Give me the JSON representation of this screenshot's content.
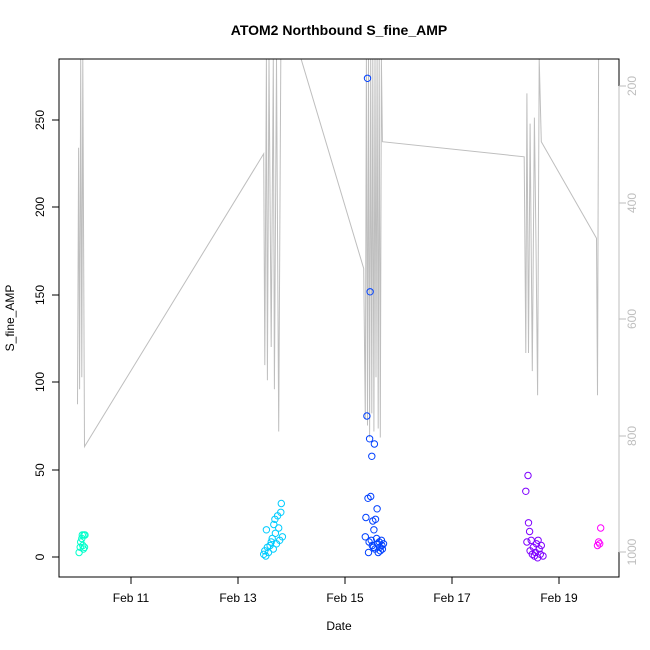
{
  "chart_data": {
    "type": "scatter",
    "title": "ATOM2 Northbound S_fine_AMP",
    "xlabel": "Date",
    "ylabel": "S_fine_AMP",
    "x_ticks": [
      "Feb 11",
      "Feb 13",
      "Feb 15",
      "Feb 17",
      "Feb 19"
    ],
    "y_ticks": [
      "0",
      "50",
      "100",
      "150",
      "200",
      "250"
    ],
    "y_right_ticks": [
      "200",
      "400",
      "600",
      "800",
      "1000"
    ],
    "xlim": [
      "Feb 9 15:30",
      "Feb 20 01:00"
    ],
    "ylim": [
      -11,
      285
    ],
    "y_right_lim": [
      1031,
      173
    ],
    "grid": false,
    "series": [
      {
        "marker": "open-circle",
        "colors": [
          "#00ffcc",
          "#00ccff",
          "#0040ff",
          "#7f00ff",
          "#ff00ff"
        ],
        "points": [
          {
            "x": 10.03,
            "y": 3,
            "c": 0
          },
          {
            "x": 10.05,
            "y": 6,
            "c": 0
          },
          {
            "x": 10.06,
            "y": 9,
            "c": 0
          },
          {
            "x": 10.08,
            "y": 11,
            "c": 0
          },
          {
            "x": 10.09,
            "y": 13,
            "c": 0
          },
          {
            "x": 10.1,
            "y": 7,
            "c": 0
          },
          {
            "x": 10.11,
            "y": 5,
            "c": 0
          },
          {
            "x": 10.12,
            "y": 13,
            "c": 0
          },
          {
            "x": 10.13,
            "y": 6,
            "c": 0
          },
          {
            "x": 10.14,
            "y": 13,
            "c": 0
          },
          {
            "x": 13.48,
            "y": 2,
            "c": 1
          },
          {
            "x": 13.5,
            "y": 4,
            "c": 1
          },
          {
            "x": 13.52,
            "y": 1,
            "c": 1
          },
          {
            "x": 13.53,
            "y": 16,
            "c": 1
          },
          {
            "x": 13.55,
            "y": 6,
            "c": 1
          },
          {
            "x": 13.57,
            "y": 3,
            "c": 1
          },
          {
            "x": 13.6,
            "y": 7,
            "c": 1
          },
          {
            "x": 13.62,
            "y": 9,
            "c": 1
          },
          {
            "x": 13.64,
            "y": 11,
            "c": 1
          },
          {
            "x": 13.66,
            "y": 5,
            "c": 1
          },
          {
            "x": 13.67,
            "y": 19,
            "c": 1
          },
          {
            "x": 13.69,
            "y": 22,
            "c": 1
          },
          {
            "x": 13.7,
            "y": 14,
            "c": 1
          },
          {
            "x": 13.72,
            "y": 8,
            "c": 1
          },
          {
            "x": 13.74,
            "y": 24,
            "c": 1
          },
          {
            "x": 13.76,
            "y": 17,
            "c": 1
          },
          {
            "x": 13.78,
            "y": 10,
            "c": 1
          },
          {
            "x": 13.8,
            "y": 26,
            "c": 1
          },
          {
            "x": 13.81,
            "y": 31,
            "c": 1
          },
          {
            "x": 13.83,
            "y": 12,
            "c": 1
          },
          {
            "x": 15.38,
            "y": 12,
            "c": 2
          },
          {
            "x": 15.39,
            "y": 23,
            "c": 2
          },
          {
            "x": 15.41,
            "y": 81,
            "c": 2
          },
          {
            "x": 15.42,
            "y": 274,
            "c": 2
          },
          {
            "x": 15.43,
            "y": 34,
            "c": 2
          },
          {
            "x": 15.45,
            "y": 9,
            "c": 2
          },
          {
            "x": 15.46,
            "y": 68,
            "c": 2
          },
          {
            "x": 15.47,
            "y": 152,
            "c": 2
          },
          {
            "x": 15.48,
            "y": 35,
            "c": 2
          },
          {
            "x": 15.5,
            "y": 58,
            "c": 2
          },
          {
            "x": 15.51,
            "y": 7,
            "c": 2
          },
          {
            "x": 15.52,
            "y": 21,
            "c": 2
          },
          {
            "x": 15.54,
            "y": 16,
            "c": 2
          },
          {
            "x": 15.55,
            "y": 65,
            "c": 2
          },
          {
            "x": 15.56,
            "y": 5,
            "c": 2
          },
          {
            "x": 15.57,
            "y": 22,
            "c": 2
          },
          {
            "x": 15.59,
            "y": 11,
            "c": 2
          },
          {
            "x": 15.6,
            "y": 28,
            "c": 2
          },
          {
            "x": 15.61,
            "y": 8,
            "c": 2
          },
          {
            "x": 15.62,
            "y": 3,
            "c": 2
          },
          {
            "x": 15.64,
            "y": 9,
            "c": 2
          },
          {
            "x": 15.65,
            "y": 6,
            "c": 2
          },
          {
            "x": 15.66,
            "y": 4,
            "c": 2
          },
          {
            "x": 15.68,
            "y": 10,
            "c": 2
          },
          {
            "x": 15.69,
            "y": 7,
            "c": 2
          },
          {
            "x": 15.7,
            "y": 5,
            "c": 2
          },
          {
            "x": 15.72,
            "y": 8,
            "c": 2
          },
          {
            "x": 15.44,
            "y": 3,
            "c": 2
          },
          {
            "x": 15.49,
            "y": 10,
            "c": 2
          },
          {
            "x": 15.53,
            "y": 6,
            "c": 2
          },
          {
            "x": 18.38,
            "y": 38,
            "c": 3
          },
          {
            "x": 18.4,
            "y": 9,
            "c": 3
          },
          {
            "x": 18.42,
            "y": 47,
            "c": 3
          },
          {
            "x": 18.43,
            "y": 20,
            "c": 3
          },
          {
            "x": 18.45,
            "y": 15,
            "c": 3
          },
          {
            "x": 18.46,
            "y": 4,
            "c": 3
          },
          {
            "x": 18.48,
            "y": 10,
            "c": 3
          },
          {
            "x": 18.5,
            "y": 2,
            "c": 3
          },
          {
            "x": 18.52,
            "y": 6,
            "c": 3
          },
          {
            "x": 18.54,
            "y": 1,
            "c": 3
          },
          {
            "x": 18.56,
            "y": 3,
            "c": 3
          },
          {
            "x": 18.58,
            "y": 8,
            "c": 3
          },
          {
            "x": 18.6,
            "y": 0,
            "c": 3
          },
          {
            "x": 18.61,
            "y": 10,
            "c": 3
          },
          {
            "x": 18.63,
            "y": 5,
            "c": 3
          },
          {
            "x": 18.65,
            "y": 2,
            "c": 3
          },
          {
            "x": 18.67,
            "y": 7,
            "c": 3
          },
          {
            "x": 18.7,
            "y": 1,
            "c": 3
          },
          {
            "x": 19.72,
            "y": 7,
            "c": 4
          },
          {
            "x": 19.74,
            "y": 9,
            "c": 4
          },
          {
            "x": 19.76,
            "y": 8,
            "c": 4
          },
          {
            "x": 19.78,
            "y": 17,
            "c": 4
          }
        ]
      },
      {
        "type": "line",
        "axis": "right",
        "color": "#bebebe",
        "points": [
          {
            "x": 10.0,
            "y": 745
          },
          {
            "x": 10.02,
            "y": 320
          },
          {
            "x": 10.04,
            "y": 720
          },
          {
            "x": 10.06,
            "y": 150
          },
          {
            "x": 10.08,
            "y": 700
          },
          {
            "x": 10.1,
            "y": 150
          },
          {
            "x": 10.13,
            "y": 815
          },
          {
            "x": 13.48,
            "y": 330
          },
          {
            "x": 13.5,
            "y": 680
          },
          {
            "x": 13.53,
            "y": 150
          },
          {
            "x": 13.55,
            "y": 705
          },
          {
            "x": 13.58,
            "y": 150
          },
          {
            "x": 13.62,
            "y": 650
          },
          {
            "x": 13.66,
            "y": 150
          },
          {
            "x": 13.68,
            "y": 720
          },
          {
            "x": 13.72,
            "y": 150
          },
          {
            "x": 13.76,
            "y": 790
          },
          {
            "x": 13.8,
            "y": 150
          },
          {
            "x": 14.18,
            "y": 150
          },
          {
            "x": 15.35,
            "y": 520
          },
          {
            "x": 15.38,
            "y": 770
          },
          {
            "x": 15.4,
            "y": 150
          },
          {
            "x": 15.42,
            "y": 780
          },
          {
            "x": 15.44,
            "y": 150
          },
          {
            "x": 15.46,
            "y": 800
          },
          {
            "x": 15.48,
            "y": 150
          },
          {
            "x": 15.5,
            "y": 760
          },
          {
            "x": 15.52,
            "y": 150
          },
          {
            "x": 15.54,
            "y": 790
          },
          {
            "x": 15.56,
            "y": 150
          },
          {
            "x": 15.58,
            "y": 700
          },
          {
            "x": 15.6,
            "y": 150
          },
          {
            "x": 15.62,
            "y": 785
          },
          {
            "x": 15.64,
            "y": 150
          },
          {
            "x": 15.66,
            "y": 800
          },
          {
            "x": 15.68,
            "y": 150
          },
          {
            "x": 15.7,
            "y": 310
          },
          {
            "x": 18.35,
            "y": 335
          },
          {
            "x": 18.38,
            "y": 660
          },
          {
            "x": 18.4,
            "y": 230
          },
          {
            "x": 18.43,
            "y": 660
          },
          {
            "x": 18.46,
            "y": 280
          },
          {
            "x": 18.5,
            "y": 690
          },
          {
            "x": 18.54,
            "y": 270
          },
          {
            "x": 18.57,
            "y": 480
          },
          {
            "x": 18.6,
            "y": 730
          },
          {
            "x": 18.63,
            "y": 150
          },
          {
            "x": 18.67,
            "y": 310
          },
          {
            "x": 19.7,
            "y": 470
          },
          {
            "x": 19.72,
            "y": 730
          },
          {
            "x": 19.74,
            "y": 150
          }
        ]
      }
    ]
  }
}
